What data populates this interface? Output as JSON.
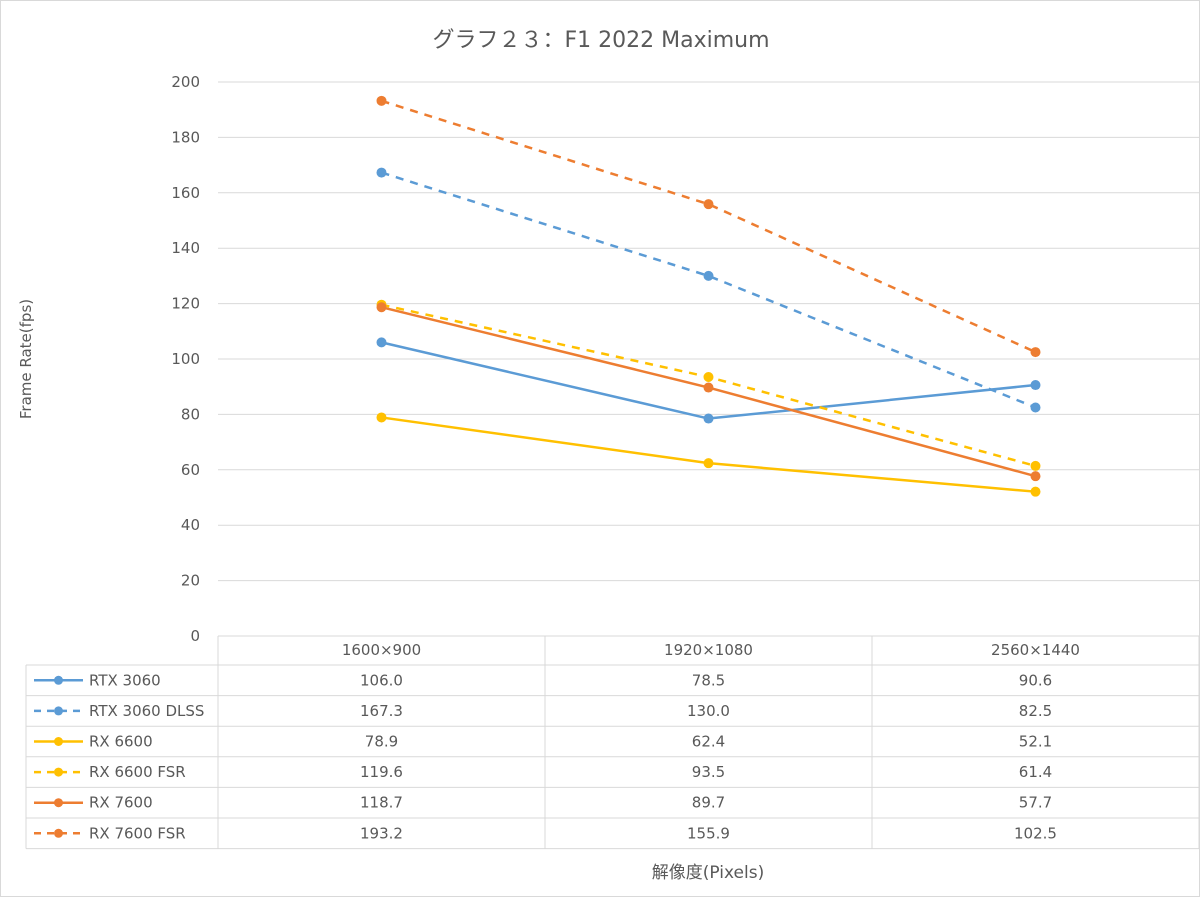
{
  "chart_data": {
    "type": "line",
    "title": "グラフ２３：F1 2022 Maximum",
    "xlabel": "解像度(Pixels)",
    "ylabel": "Frame Rate(fps)",
    "categories": [
      "1600×900",
      "1920×1080",
      "2560×1440"
    ],
    "ylim": [
      0,
      200
    ],
    "yticks": [
      "0",
      "20",
      "40",
      "60",
      "80",
      "100",
      "120",
      "140",
      "160",
      "180",
      "200"
    ],
    "grid": true,
    "legend": "data-table",
    "series": [
      {
        "name": "RTX 3060",
        "values": [
          106.0,
          78.5,
          90.6
        ],
        "labels": [
          "106.0",
          "78.5",
          "90.6"
        ],
        "color": "#5b9bd5",
        "dashed": false
      },
      {
        "name": "RTX 3060 DLSS",
        "values": [
          167.3,
          130.0,
          82.5
        ],
        "labels": [
          "167.3",
          "130.0",
          "82.5"
        ],
        "color": "#5b9bd5",
        "dashed": true
      },
      {
        "name": "RX 6600",
        "values": [
          78.9,
          62.4,
          52.1
        ],
        "labels": [
          "78.9",
          "62.4",
          "52.1"
        ],
        "color": "#ffc000",
        "dashed": false
      },
      {
        "name": "RX 6600 FSR",
        "values": [
          119.6,
          93.5,
          61.4
        ],
        "labels": [
          "119.6",
          "93.5",
          "61.4"
        ],
        "color": "#ffc000",
        "dashed": true
      },
      {
        "name": "RX 7600",
        "values": [
          118.7,
          89.7,
          57.7
        ],
        "labels": [
          "118.7",
          "89.7",
          "57.7"
        ],
        "color": "#ed7d31",
        "dashed": false
      },
      {
        "name": "RX 7600 FSR",
        "values": [
          193.2,
          155.9,
          102.5
        ],
        "labels": [
          "193.2",
          "155.9",
          "102.5"
        ],
        "color": "#ed7d31",
        "dashed": true
      }
    ]
  }
}
